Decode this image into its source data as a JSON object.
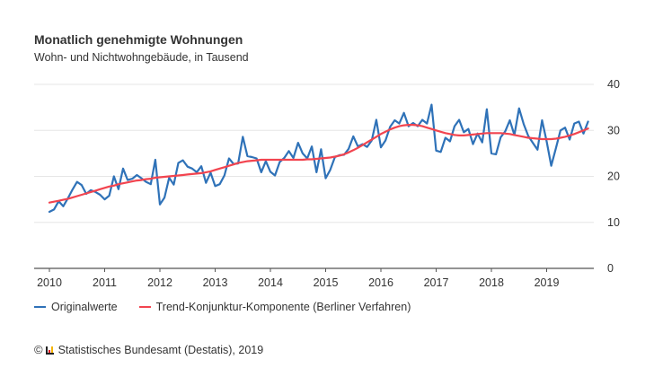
{
  "header": {
    "title": "Monatlich genehmigte Wohnungen",
    "subtitle": "Wohn- und Nichtwohngebäude, in Tausend"
  },
  "legend": {
    "items": [
      {
        "label": "Originalwerte",
        "color": "#2f72b8"
      },
      {
        "label": "Trend-Konjunktur-Komponente (Berliner Verfahren)",
        "color": "#f2444f"
      }
    ]
  },
  "footer": {
    "copyright_symbol": "©",
    "logo_text": "Destatis",
    "source": "Statistisches Bundesamt (Destatis), 2019"
  },
  "chart_data": {
    "type": "line",
    "title": "Monatlich genehmigte Wohnungen",
    "subtitle": "Wohn- und Nichtwohngebäude, in Tausend",
    "xlabel": "",
    "ylabel": "",
    "x_start": "2010-01",
    "x_frequency": "monthly",
    "x_ticks": [
      "2010",
      "2011",
      "2012",
      "2013",
      "2014",
      "2015",
      "2016",
      "2017",
      "2018",
      "2019"
    ],
    "y_ticks": [
      0,
      10,
      20,
      30,
      40
    ],
    "ylim": [
      0,
      40
    ],
    "grid": true,
    "legend_position": "bottom-left",
    "series": [
      {
        "name": "Originalwerte",
        "color": "#2f72b8",
        "values": [
          12.3,
          12.8,
          14.6,
          13.5,
          15.2,
          17.1,
          18.8,
          18.1,
          16.2,
          17.0,
          16.6,
          16.0,
          15.0,
          15.8,
          20.0,
          17.2,
          21.7,
          19.2,
          19.5,
          20.3,
          19.6,
          18.8,
          18.3,
          23.6,
          13.9,
          15.4,
          19.7,
          18.2,
          22.9,
          23.5,
          22.1,
          21.7,
          20.9,
          22.2,
          18.6,
          20.8,
          17.9,
          18.3,
          20.2,
          23.9,
          22.7,
          22.8,
          28.6,
          24.4,
          24.2,
          23.9,
          20.9,
          23.3,
          21.0,
          20.2,
          23.1,
          24.0,
          25.5,
          24.0,
          27.3,
          25.0,
          23.9,
          26.5,
          20.9,
          25.9,
          19.6,
          21.4,
          24.2,
          24.6,
          24.7,
          26.0,
          28.7,
          26.5,
          27.0,
          26.4,
          27.8,
          32.3,
          26.3,
          27.8,
          30.8,
          32.2,
          31.5,
          33.8,
          30.9,
          31.6,
          30.9,
          32.3,
          31.5,
          35.6,
          25.6,
          25.3,
          28.4,
          27.6,
          30.9,
          32.3,
          29.6,
          30.3,
          27.0,
          29.3,
          27.4,
          34.6,
          25.0,
          24.8,
          28.5,
          29.8,
          32.2,
          29.0,
          34.8,
          31.4,
          28.8,
          27.3,
          25.8,
          32.2,
          27.6,
          22.3,
          26.1,
          30.0,
          30.6,
          28.0,
          31.5,
          31.9,
          29.3,
          31.9
        ]
      },
      {
        "name": "Trend-Konjunktur-Komponente (Berliner Verfahren)",
        "color": "#f2444f",
        "values": [
          14.3,
          14.5,
          14.7,
          14.9,
          15.1,
          15.4,
          15.7,
          16.0,
          16.3,
          16.6,
          16.9,
          17.2,
          17.5,
          17.8,
          18.0,
          18.3,
          18.5,
          18.7,
          18.9,
          19.1,
          19.2,
          19.4,
          19.5,
          19.7,
          19.8,
          19.9,
          20.0,
          20.1,
          20.2,
          20.3,
          20.4,
          20.5,
          20.6,
          20.7,
          20.9,
          21.1,
          21.4,
          21.7,
          22.0,
          22.3,
          22.6,
          22.9,
          23.1,
          23.3,
          23.4,
          23.5,
          23.6,
          23.6,
          23.6,
          23.6,
          23.6,
          23.6,
          23.6,
          23.6,
          23.6,
          23.6,
          23.7,
          23.7,
          23.8,
          23.9,
          24.0,
          24.1,
          24.3,
          24.5,
          24.8,
          25.2,
          25.7,
          26.2,
          26.8,
          27.4,
          28.0,
          28.6,
          29.2,
          29.7,
          30.2,
          30.6,
          30.9,
          31.1,
          31.2,
          31.2,
          31.1,
          30.9,
          30.6,
          30.3,
          30.0,
          29.7,
          29.4,
          29.2,
          29.0,
          28.9,
          28.9,
          29.0,
          29.1,
          29.2,
          29.3,
          29.4,
          29.4,
          29.4,
          29.4,
          29.3,
          29.2,
          29.0,
          28.8,
          28.6,
          28.4,
          28.3,
          28.2,
          28.1,
          28.1,
          28.1,
          28.2,
          28.4,
          28.6,
          28.9,
          29.2,
          29.6,
          30.0,
          30.4
        ]
      }
    ]
  }
}
